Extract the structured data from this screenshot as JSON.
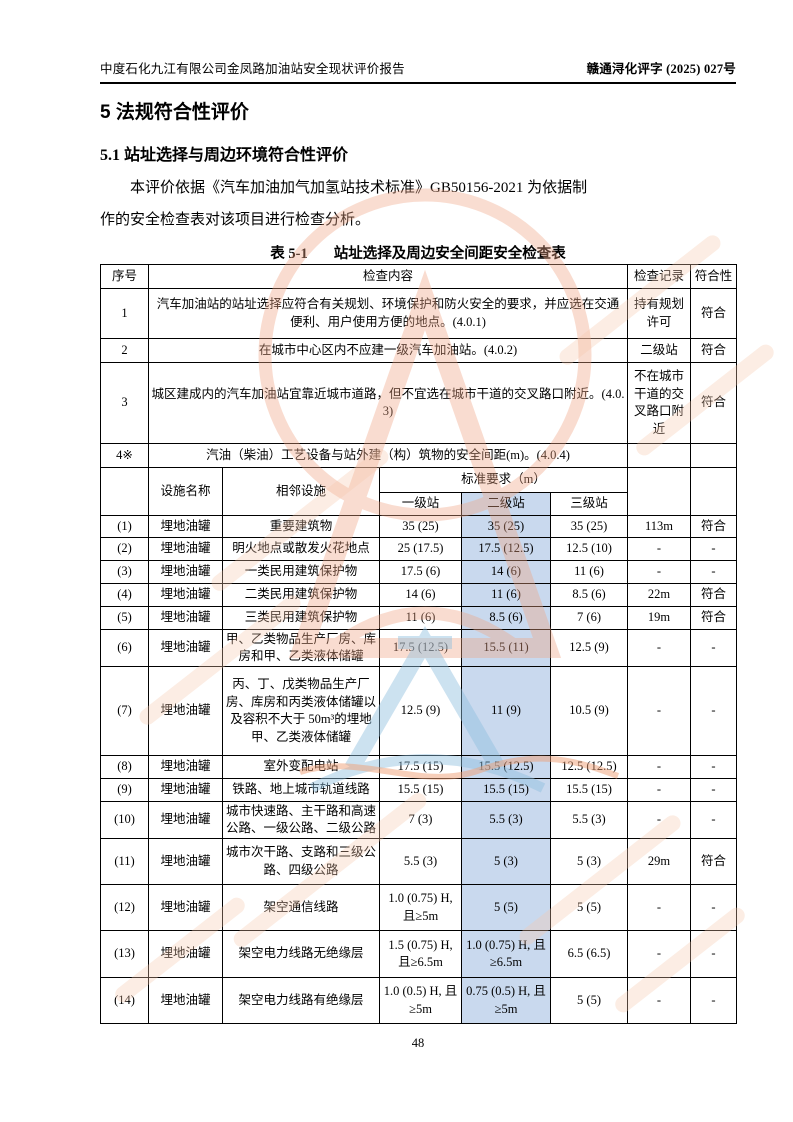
{
  "page": {
    "header_left": "中度石化九江有限公司金凤路加油站安全现状评价报告",
    "header_right": "赣通浔化评字 (2025) 027号",
    "section_title": "5 法规符合性评价",
    "subsection_title": "5.1 站址选择与周边环境符合性评价",
    "paragraph_line1": "本评价依据《汽车加油加气加氢站技术标准》GB50156-2021 为依据制",
    "paragraph_line2": "作的安全检查表对该项目进行检查分析。",
    "page_number": "48"
  },
  "table": {
    "caption_label": "表 5-1",
    "caption_text": "站址选择及周边安全间距安全检查表",
    "head": {
      "seq": "序号",
      "content": "检查内容",
      "record": "检查记录",
      "compliance": "符合性"
    },
    "general_rows": [
      {
        "seq": "1",
        "content": "汽车加油站的站址选择应符合有关规划、环境保护和防火安全的要求，并应选在交通便利、用户使用方便的地点。(4.0.1)",
        "record": "持有规划许可",
        "compliance": "符合"
      },
      {
        "seq": "2",
        "content": "在城市中心区内不应建一级汽车加油站。(4.0.2)",
        "record": "二级站",
        "compliance": "符合"
      },
      {
        "seq": "3",
        "content": "城区建成内的汽车加油站宜靠近城市道路，但不宜选在城市干道的交叉路口附近。(4.0.3)",
        "record": "不在城市干道的交叉路口附近",
        "compliance": "符合"
      }
    ],
    "section_row": {
      "seq": "4※",
      "content": "汽油（柴油）工艺设备与站外建（构）筑物的安全间距(m)。(4.0.4)"
    },
    "sub_head": {
      "facility": "设施名称",
      "adjacent": "相邻设施",
      "requirement": "标准要求（m）",
      "level1": "一级站",
      "level2": "二级站",
      "level3": "三级站"
    },
    "spacing_rows": [
      {
        "seq": "(1)",
        "facility": "埋地油罐",
        "adjacent": "重要建筑物",
        "l1": "35 (25)",
        "l2": "35 (25)",
        "l3": "35 (25)",
        "record": "113m",
        "compliance": "符合"
      },
      {
        "seq": "(2)",
        "facility": "埋地油罐",
        "adjacent": "明火地点或散发火花地点",
        "l1": "25 (17.5)",
        "l2": "17.5 (12.5)",
        "l3": "12.5 (10)",
        "record": "-",
        "compliance": "-"
      },
      {
        "seq": "(3)",
        "facility": "埋地油罐",
        "adjacent": "一类民用建筑保护物",
        "l1": "17.5 (6)",
        "l2": "14 (6)",
        "l3": "11 (6)",
        "record": "-",
        "compliance": "-"
      },
      {
        "seq": "(4)",
        "facility": "埋地油罐",
        "adjacent": "二类民用建筑保护物",
        "l1": "14 (6)",
        "l2": "11 (6)",
        "l3": "8.5 (6)",
        "record": "22m",
        "compliance": "符合"
      },
      {
        "seq": "(5)",
        "facility": "埋地油罐",
        "adjacent": "三类民用建筑保护物",
        "l1": "11 (6)",
        "l2": "8.5 (6)",
        "l3": "7 (6)",
        "record": "19m",
        "compliance": "符合"
      },
      {
        "seq": "(6)",
        "facility": "埋地油罐",
        "adjacent": "甲、乙类物品生产厂房、库房和甲、乙类液体储罐",
        "l1": "17.5 (12.5)",
        "l2": "15.5 (11)",
        "l3": "12.5 (9)",
        "record": "-",
        "compliance": "-"
      },
      {
        "seq": "(7)",
        "facility": "埋地油罐",
        "adjacent": "丙、丁、戊类物品生产厂房、库房和丙类液体储罐以及容积不大于 50m³的埋地甲、乙类液体储罐",
        "l1": "12.5 (9)",
        "l2": "11 (9)",
        "l3": "10.5 (9)",
        "record": "-",
        "compliance": "-"
      },
      {
        "seq": "(8)",
        "facility": "埋地油罐",
        "adjacent": "室外变配电站",
        "l1": "17.5 (15)",
        "l2": "15.5 (12.5)",
        "l3": "12.5 (12.5)",
        "record": "-",
        "compliance": "-"
      },
      {
        "seq": "(9)",
        "facility": "埋地油罐",
        "adjacent": "铁路、地上城市轨道线路",
        "l1": "15.5 (15)",
        "l2": "15.5 (15)",
        "l3": "15.5 (15)",
        "record": "-",
        "compliance": "-"
      },
      {
        "seq": "(10)",
        "facility": "埋地油罐",
        "adjacent": "城市快速路、主干路和高速公路、一级公路、二级公路",
        "l1": "7 (3)",
        "l2": "5.5 (3)",
        "l3": "5.5 (3)",
        "record": "-",
        "compliance": "-"
      },
      {
        "seq": "(11)",
        "facility": "埋地油罐",
        "adjacent": "城市次干路、支路和三级公路、四级公路",
        "l1": "5.5 (3)",
        "l2": "5 (3)",
        "l3": "5 (3)",
        "record": "29m",
        "compliance": "符合"
      },
      {
        "seq": "(12)",
        "facility": "埋地油罐",
        "adjacent": "架空通信线路",
        "l1": "1.0 (0.75) H, 且≥5m",
        "l2": "5 (5)",
        "l3": "5 (5)",
        "record": "-",
        "compliance": "-"
      },
      {
        "seq": "(13)",
        "facility": "埋地油罐",
        "adjacent": "架空电力线路无绝缘层",
        "l1": "1.5 (0.75) H, 且≥6.5m",
        "l2": "1.0 (0.75) H, 且≥6.5m",
        "l3": "6.5 (6.5)",
        "record": "-",
        "compliance": "-"
      },
      {
        "seq": "(14)",
        "facility": "埋地油罐",
        "adjacent": "架空电力线路有绝缘层",
        "l1": "1.0 (0.5) H, 且≥5m",
        "l2": "0.75 (0.5) H, 且≥5m",
        "l3": "5 (5)",
        "record": "-",
        "compliance": "-"
      }
    ],
    "highlight_color": "#c9d9ee"
  }
}
